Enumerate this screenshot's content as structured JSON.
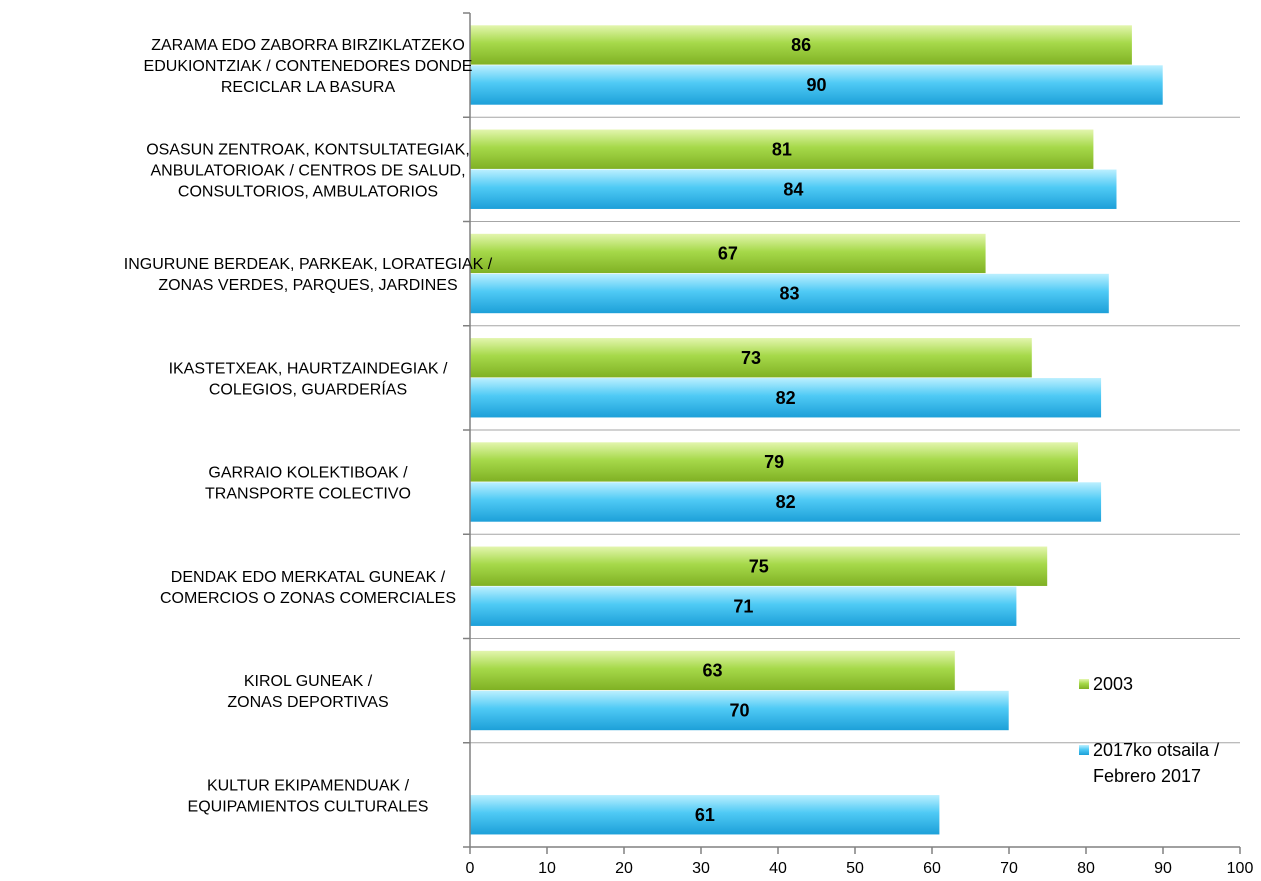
{
  "chart_data": {
    "type": "bar",
    "orientation": "horizontal",
    "categories": [
      "ZARAMA EDO ZABORRA BIRZIKLATZEKO EDUKIONTZIAK / CONTENEDORES DONDE RECICLAR LA BASURA",
      "OSASUN ZENTROAK, KONTSULTATEGIAK, ANBULATORIOAK / CENTROS DE SALUD, CONSULTORIOS, AMBULATORIOS",
      "INGURUNE BERDEAK, PARKEAK, LORATEGIAK / ZONAS VERDES, PARQUES, JARDINES",
      "IKASTETXEAK, HAURTZAINDEGIAK / COLEGIOS, GUARDERÍAS",
      "GARRAIO KOLEKTIBOAK / TRANSPORTE COLECTIVO",
      "DENDAK EDO MERKATAL GUNEAK / COMERCIOS O ZONAS COMERCIALES",
      "KIROL GUNEAK / ZONAS DEPORTIVAS",
      "KULTUR EKIPAMENDUAK / EQUIPAMIENTOS CULTURALES"
    ],
    "category_lines": [
      [
        "ZARAMA EDO ZABORRA BIRZIKLATZEKO",
        "EDUKIONTZIAK / CONTENEDORES DONDE",
        "RECICLAR LA BASURA"
      ],
      [
        "OSASUN ZENTROAK, KONTSULTATEGIAK,",
        "ANBULATORIOAK / CENTROS DE SALUD,",
        "CONSULTORIOS, AMBULATORIOS"
      ],
      [
        "INGURUNE BERDEAK, PARKEAK, LORATEGIAK /",
        "ZONAS VERDES, PARQUES, JARDINES"
      ],
      [
        "IKASTETXEAK, HAURTZAINDEGIAK /",
        "COLEGIOS, GUARDERÍAS"
      ],
      [
        "GARRAIO KOLEKTIBOAK /",
        "TRANSPORTE COLECTIVO"
      ],
      [
        "DENDAK EDO MERKATAL GUNEAK /",
        "COMERCIOS O ZONAS COMERCIALES"
      ],
      [
        "KIROL GUNEAK /",
        "ZONAS DEPORTIVAS"
      ],
      [
        "KULTUR EKIPAMENDUAK /",
        "EQUIPAMIENTOS CULTURALES"
      ]
    ],
    "series": [
      {
        "name": "2003",
        "color": "#99cc33",
        "values": [
          86,
          81,
          67,
          73,
          79,
          75,
          63,
          null
        ]
      },
      {
        "name": "2017ko otsaila / Febrero 2017",
        "name_lines": [
          "2017ko otsaila /",
          "Febrero 2017"
        ],
        "color": "#33bbee",
        "values": [
          90,
          84,
          83,
          82,
          82,
          71,
          70,
          61
        ]
      }
    ],
    "xlim": [
      0,
      100
    ],
    "xticks": [
      0,
      10,
      20,
      30,
      40,
      50,
      60,
      70,
      80,
      90,
      100
    ],
    "title": "",
    "xlabel": "",
    "ylabel": "",
    "grid": "horizontal separators between categories",
    "legend_position": "right"
  }
}
